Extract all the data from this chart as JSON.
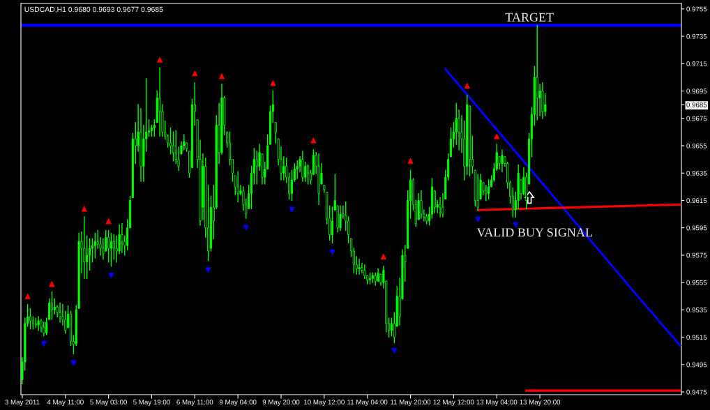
{
  "chart_data": {
    "type": "candlestick",
    "title": "USDCAD,H1 0.9680 0.9693 0.9677 0.9685",
    "color": "#00ff00",
    "categories": [
      "3 May 2011",
      null,
      null,
      null,
      null,
      null,
      null,
      null,
      null,
      null,
      null,
      null,
      null,
      null,
      null,
      null,
      "4 May 11:00",
      null,
      null,
      null,
      null,
      null,
      null,
      null,
      null,
      null,
      null,
      null,
      null,
      null,
      null,
      null,
      "5 May 03:00",
      null,
      null,
      null,
      null,
      null,
      null,
      null,
      null,
      null,
      null,
      null,
      null,
      null,
      null,
      null,
      "5 May 19:00",
      null,
      null,
      null,
      null,
      null,
      null,
      null,
      null,
      null,
      null,
      null,
      null,
      null,
      null,
      null,
      "6 May 11:00",
      null,
      null,
      null,
      null,
      null,
      null,
      null,
      null,
      null,
      null,
      null,
      null,
      null,
      null,
      null,
      "9 May 04:00",
      null,
      null,
      null,
      null,
      null,
      null,
      null,
      null,
      null,
      null,
      null,
      null,
      null,
      null,
      null,
      "9 May 20:00",
      null,
      null,
      null,
      null,
      null,
      null,
      null,
      null,
      null,
      null,
      null,
      null,
      null,
      null,
      null,
      "10 May 12:00",
      null,
      null,
      null,
      null,
      null,
      null,
      null,
      null,
      null,
      null,
      null,
      null,
      null,
      null,
      null,
      "11 May 04:00",
      null,
      null,
      null,
      null,
      null,
      null,
      null,
      null,
      null,
      null,
      null,
      null,
      null,
      null,
      null,
      "11 May 20:00",
      null,
      null,
      null,
      null,
      null,
      null,
      null,
      null,
      null,
      null,
      null,
      null,
      null,
      null,
      null,
      "12 May 12:00",
      null,
      null,
      null,
      null,
      null,
      null,
      null,
      null,
      null,
      null,
      null,
      null,
      null,
      null,
      null,
      "13 May 04:00",
      null,
      null,
      null,
      null,
      null,
      null,
      null,
      null,
      null,
      null,
      null,
      null,
      null,
      null,
      null,
      "13 May 20:00",
      null,
      null,
      null,
      null,
      null,
      null,
      null,
      null,
      null,
      null,
      null,
      null,
      null,
      null,
      null,
      null,
      null,
      null,
      null,
      null,
      null,
      null,
      null,
      null,
      null,
      null,
      null,
      null,
      null,
      null,
      null,
      null,
      null,
      null,
      null,
      null,
      null,
      null,
      null,
      null,
      null,
      null,
      null,
      null,
      null,
      null,
      null,
      null,
      null,
      null,
      null,
      null
    ],
    "ohlc": [
      [
        0.9484,
        0.95,
        0.9481,
        0.9497
      ],
      [
        0.9497,
        0.9529,
        0.9491,
        0.9525
      ],
      [
        0.9525,
        0.9539,
        0.9523,
        0.953
      ],
      [
        0.953,
        0.9536,
        0.9521,
        0.9527
      ],
      [
        0.9527,
        0.953,
        0.9521,
        0.9525
      ],
      [
        0.9525,
        0.9529,
        0.9522,
        0.9524
      ],
      [
        0.9524,
        0.953,
        0.952,
        0.9527
      ],
      [
        0.9527,
        0.9528,
        0.9519,
        0.9522
      ],
      [
        0.9522,
        0.9526,
        0.9516,
        0.9518
      ],
      [
        0.9518,
        0.9529,
        0.9517,
        0.9526
      ],
      [
        0.9528,
        0.9543,
        0.9528,
        0.954
      ],
      [
        0.954,
        0.9548,
        0.9528,
        0.9535
      ],
      [
        0.9535,
        0.9543,
        0.9532,
        0.9537
      ],
      [
        0.9537,
        0.9538,
        0.953,
        0.9533
      ],
      [
        0.9533,
        0.954,
        0.9526,
        0.953
      ],
      [
        0.953,
        0.9539,
        0.9524,
        0.9528
      ],
      [
        0.9528,
        0.9534,
        0.9518,
        0.952
      ],
      [
        0.9522,
        0.9538,
        0.9522,
        0.9532
      ],
      [
        0.9532,
        0.9534,
        0.9509,
        0.9512
      ],
      [
        0.9512,
        0.9516,
        0.9503,
        0.951
      ],
      [
        0.951,
        0.9538,
        0.9509,
        0.9535
      ],
      [
        0.9536,
        0.9591,
        0.9536,
        0.9585
      ],
      [
        0.9585,
        0.9592,
        0.9562,
        0.958
      ],
      [
        0.958,
        0.9603,
        0.9558,
        0.957
      ],
      [
        0.957,
        0.9589,
        0.9558,
        0.9575
      ],
      [
        0.9575,
        0.9587,
        0.9564,
        0.958
      ],
      [
        0.958,
        0.9587,
        0.957,
        0.9582
      ],
      [
        0.9582,
        0.9591,
        0.9573,
        0.9585
      ],
      [
        0.9585,
        0.9593,
        0.958,
        0.9583
      ],
      [
        0.9583,
        0.9588,
        0.9575,
        0.958
      ],
      [
        0.958,
        0.9587,
        0.9572,
        0.9576
      ],
      [
        0.9578,
        0.9593,
        0.9578,
        0.9588
      ],
      [
        0.9588,
        0.9593,
        0.957,
        0.958
      ],
      [
        0.958,
        0.9591,
        0.9567,
        0.9585
      ],
      [
        0.9585,
        0.959,
        0.9572,
        0.958
      ],
      [
        0.958,
        0.9589,
        0.957,
        0.9578
      ],
      [
        0.9578,
        0.9597,
        0.9576,
        0.959
      ],
      [
        0.959,
        0.9598,
        0.9577,
        0.9585
      ],
      [
        0.9585,
        0.9589,
        0.9575,
        0.9582
      ],
      [
        0.9582,
        0.9601,
        0.9579,
        0.9595
      ],
      [
        0.9595,
        0.9618,
        0.9595,
        0.9615
      ],
      [
        0.9617,
        0.9664,
        0.9617,
        0.966
      ],
      [
        0.966,
        0.9672,
        0.9642,
        0.9655
      ],
      [
        0.9655,
        0.9685,
        0.9651,
        0.9665
      ],
      [
        0.9665,
        0.9682,
        0.9629,
        0.964
      ],
      [
        0.964,
        0.967,
        0.9629,
        0.966
      ],
      [
        0.966,
        0.9704,
        0.9651,
        0.9665
      ],
      [
        0.9665,
        0.9674,
        0.9662,
        0.9666
      ],
      [
        0.9666,
        0.967,
        0.9662,
        0.9668
      ],
      [
        0.9668,
        0.9674,
        0.9662,
        0.967
      ],
      [
        0.9672,
        0.9695,
        0.9672,
        0.969
      ],
      [
        0.969,
        0.9712,
        0.9662,
        0.968
      ],
      [
        0.968,
        0.9685,
        0.9662,
        0.9665
      ],
      [
        0.9665,
        0.9673,
        0.966,
        0.9662
      ],
      [
        0.9662,
        0.9663,
        0.9654,
        0.9657
      ],
      [
        0.9657,
        0.9668,
        0.9649,
        0.9655
      ],
      [
        0.9655,
        0.9665,
        0.9644,
        0.965
      ],
      [
        0.965,
        0.9666,
        0.9642,
        0.9645
      ],
      [
        0.9645,
        0.9654,
        0.9637,
        0.964
      ],
      [
        0.9649,
        0.9658,
        0.9649,
        0.9655
      ],
      [
        0.9655,
        0.9663,
        0.9652,
        0.9658
      ],
      [
        0.9657,
        0.9657,
        0.9651,
        0.9653
      ],
      [
        0.9651,
        0.9651,
        0.9632,
        0.9635
      ],
      [
        0.9639,
        0.9689,
        0.9639,
        0.9685
      ],
      [
        0.9685,
        0.9701,
        0.967,
        0.968
      ],
      [
        0.9674,
        0.9674,
        0.9639,
        0.9645
      ],
      [
        0.9645,
        0.9659,
        0.9597,
        0.96
      ],
      [
        0.961,
        0.9649,
        0.9601,
        0.964
      ],
      [
        0.964,
        0.9646,
        0.9588,
        0.9595
      ],
      [
        0.9595,
        0.9626,
        0.9571,
        0.9578
      ],
      [
        0.958,
        0.9618,
        0.9578,
        0.961
      ],
      [
        0.961,
        0.9626,
        0.9587,
        0.96
      ],
      [
        0.961,
        0.9677,
        0.9609,
        0.967
      ],
      [
        0.967,
        0.9686,
        0.9642,
        0.965
      ],
      [
        0.965,
        0.97,
        0.9649,
        0.969
      ],
      [
        0.969,
        0.9691,
        0.9663,
        0.967
      ],
      [
        0.9665,
        0.9665,
        0.9654,
        0.9657
      ],
      [
        0.9657,
        0.9665,
        0.9641,
        0.9645
      ],
      [
        0.9645,
        0.9645,
        0.9629,
        0.9635
      ],
      [
        0.9633,
        0.9633,
        0.9619,
        0.9625
      ],
      [
        0.9625,
        0.9636,
        0.9614,
        0.962
      ],
      [
        0.962,
        0.9626,
        0.9619,
        0.9622
      ],
      [
        0.9622,
        0.9625,
        0.9608,
        0.9612
      ],
      [
        0.9612,
        0.9616,
        0.9602,
        0.9605
      ],
      [
        0.9609,
        0.9626,
        0.9609,
        0.962
      ],
      [
        0.962,
        0.964,
        0.9609,
        0.9635
      ],
      [
        0.9635,
        0.9653,
        0.9627,
        0.9645
      ],
      [
        0.9645,
        0.9651,
        0.9627,
        0.964
      ],
      [
        0.964,
        0.9656,
        0.9637,
        0.965
      ],
      [
        0.9649,
        0.9649,
        0.9627,
        0.9632
      ],
      [
        0.9632,
        0.9643,
        0.9627,
        0.9638
      ],
      [
        0.9638,
        0.9663,
        0.9638,
        0.9655
      ],
      [
        0.9656,
        0.9684,
        0.9656,
        0.968
      ],
      [
        0.968,
        0.9695,
        0.9672,
        0.9685
      ],
      [
        0.9672,
        0.9672,
        0.9657,
        0.9665
      ],
      [
        0.966,
        0.966,
        0.9641,
        0.9645
      ],
      [
        0.9645,
        0.9654,
        0.963,
        0.9635
      ],
      [
        0.9635,
        0.9647,
        0.963,
        0.964
      ],
      [
        0.964,
        0.9646,
        0.9628,
        0.9632
      ],
      [
        0.9632,
        0.9635,
        0.9616,
        0.962
      ],
      [
        0.962,
        0.9637,
        0.9615,
        0.963
      ],
      [
        0.963,
        0.9642,
        0.9629,
        0.9638
      ],
      [
        0.9638,
        0.9644,
        0.9631,
        0.964
      ],
      [
        0.964,
        0.9647,
        0.9636,
        0.9645
      ],
      [
        0.9645,
        0.9651,
        0.9629,
        0.9632
      ],
      [
        0.9632,
        0.9643,
        0.9629,
        0.964
      ],
      [
        0.964,
        0.9641,
        0.9627,
        0.9635
      ],
      [
        0.9635,
        0.9637,
        0.9627,
        0.963
      ],
      [
        0.9634,
        0.9652,
        0.9634,
        0.9648
      ],
      [
        0.9648,
        0.965,
        0.9635,
        0.964
      ],
      [
        0.964,
        0.9649,
        0.9612,
        0.962
      ],
      [
        0.9627,
        0.9642,
        0.9627,
        0.9635
      ],
      [
        0.9626,
        0.9626,
        0.9621,
        0.9623
      ],
      [
        0.9621,
        0.9621,
        0.9598,
        0.9602
      ],
      [
        0.9602,
        0.9611,
        0.9586,
        0.959
      ],
      [
        0.959,
        0.961,
        0.9584,
        0.96
      ],
      [
        0.9608,
        0.9634,
        0.9608,
        0.9615
      ],
      [
        0.9611,
        0.9611,
        0.9592,
        0.9595
      ],
      [
        0.9595,
        0.9611,
        0.9593,
        0.9605
      ],
      [
        0.9605,
        0.9611,
        0.9602,
        0.9604
      ],
      [
        0.9604,
        0.9614,
        0.9593,
        0.96
      ],
      [
        0.96,
        0.9603,
        0.9584,
        0.959
      ],
      [
        0.9587,
        0.9587,
        0.9574,
        0.9578
      ],
      [
        0.9578,
        0.958,
        0.9562,
        0.9568
      ],
      [
        0.9568,
        0.9574,
        0.9561,
        0.9565
      ],
      [
        0.9565,
        0.9572,
        0.9561,
        0.9566
      ],
      [
        0.9566,
        0.9569,
        0.9562,
        0.9564
      ],
      [
        0.9564,
        0.9568,
        0.9558,
        0.956
      ],
      [
        0.956,
        0.956,
        0.9554,
        0.9557
      ],
      [
        0.9557,
        0.9562,
        0.9554,
        0.9558
      ],
      [
        0.9558,
        0.9562,
        0.9555,
        0.956
      ],
      [
        0.956,
        0.9562,
        0.9553,
        0.9556
      ],
      [
        0.9556,
        0.9565,
        0.9556,
        0.9562
      ],
      [
        0.9561,
        0.9561,
        0.9553,
        0.9555
      ],
      [
        0.9555,
        0.9567,
        0.9551,
        0.9564
      ],
      [
        0.9556,
        0.9556,
        0.9519,
        0.9525
      ],
      [
        0.9525,
        0.9529,
        0.9515,
        0.952
      ],
      [
        0.952,
        0.9529,
        0.9516,
        0.9525
      ],
      [
        0.9525,
        0.9533,
        0.9511,
        0.9515
      ],
      [
        0.9523,
        0.9552,
        0.9523,
        0.9545
      ],
      [
        0.9545,
        0.9558,
        0.9524,
        0.953
      ],
      [
        0.9543,
        0.9579,
        0.9543,
        0.9575
      ],
      [
        0.9575,
        0.9582,
        0.9556,
        0.957
      ],
      [
        0.958,
        0.9622,
        0.958,
        0.9615
      ],
      [
        0.9615,
        0.9637,
        0.9602,
        0.963
      ],
      [
        0.963,
        0.9631,
        0.9608,
        0.9612
      ],
      [
        0.9612,
        0.9615,
        0.9596,
        0.9598
      ],
      [
        0.9601,
        0.962,
        0.9601,
        0.9615
      ],
      [
        0.9615,
        0.9622,
        0.9602,
        0.9605
      ],
      [
        0.9605,
        0.9608,
        0.96,
        0.9603
      ],
      [
        0.9603,
        0.9605,
        0.9598,
        0.96
      ],
      [
        0.96,
        0.961,
        0.9597,
        0.9605
      ],
      [
        0.9605,
        0.9631,
        0.9602,
        0.9625
      ],
      [
        0.9622,
        0.9622,
        0.9606,
        0.961
      ],
      [
        0.961,
        0.9615,
        0.9606,
        0.9612
      ],
      [
        0.9612,
        0.9617,
        0.9603,
        0.961
      ],
      [
        0.961,
        0.962,
        0.9603,
        0.9605
      ],
      [
        0.9616,
        0.9637,
        0.9616,
        0.9632
      ],
      [
        0.9632,
        0.9649,
        0.963,
        0.9645
      ],
      [
        0.9647,
        0.9668,
        0.9647,
        0.966
      ],
      [
        0.966,
        0.9672,
        0.9654,
        0.9665
      ],
      [
        0.9665,
        0.9686,
        0.9656,
        0.9675
      ],
      [
        0.9675,
        0.9681,
        0.9652,
        0.9665
      ],
      [
        0.9665,
        0.9677,
        0.965,
        0.966
      ],
      [
        0.966,
        0.9673,
        0.963,
        0.964
      ],
      [
        0.964,
        0.9692,
        0.9634,
        0.9685
      ],
      [
        0.9684,
        0.9684,
        0.9633,
        0.9645
      ],
      [
        0.9645,
        0.9662,
        0.9635,
        0.964
      ],
      [
        0.9637,
        0.9637,
        0.9611,
        0.9615
      ],
      [
        0.9615,
        0.9634,
        0.9608,
        0.961
      ],
      [
        0.9616,
        0.9634,
        0.9616,
        0.963
      ],
      [
        0.9628,
        0.9628,
        0.9619,
        0.9622
      ],
      [
        0.9622,
        0.9626,
        0.9615,
        0.962
      ],
      [
        0.962,
        0.963,
        0.9616,
        0.9625
      ],
      [
        0.9625,
        0.9633,
        0.9625,
        0.963
      ],
      [
        0.963,
        0.9642,
        0.9629,
        0.9638
      ],
      [
        0.9638,
        0.9656,
        0.9637,
        0.965
      ],
      [
        0.9647,
        0.9647,
        0.9638,
        0.9642
      ],
      [
        0.9642,
        0.9652,
        0.9636,
        0.9648
      ],
      [
        0.9647,
        0.9647,
        0.964,
        0.9642
      ],
      [
        0.9642,
        0.9643,
        0.9624,
        0.9628
      ],
      [
        0.9628,
        0.9629,
        0.9613,
        0.9618
      ],
      [
        0.9618,
        0.9624,
        0.9603,
        0.9608
      ],
      [
        0.9608,
        0.9621,
        0.9603,
        0.9615
      ],
      [
        0.9615,
        0.9641,
        0.9609,
        0.9635
      ],
      [
        0.963,
        0.963,
        0.9616,
        0.962
      ],
      [
        0.962,
        0.9639,
        0.9619,
        0.9632
      ],
      [
        0.9632,
        0.9635,
        0.9609,
        0.9615
      ],
      [
        0.9627,
        0.9664,
        0.9627,
        0.966
      ],
      [
        0.966,
        0.9683,
        0.9647,
        0.9678
      ],
      [
        0.9678,
        0.9713,
        0.967,
        0.9705
      ],
      [
        0.9705,
        0.9743,
        0.9674,
        0.969
      ],
      [
        0.969,
        0.97,
        0.9677,
        0.9695
      ],
      [
        0.9695,
        0.9701,
        0.9675,
        0.968
      ],
      [
        0.968,
        0.9693,
        0.9677,
        0.9685
      ],
      null,
      null,
      null,
      null,
      null,
      null,
      null,
      null,
      null,
      null,
      null,
      null,
      null,
      null,
      null,
      null,
      null,
      null,
      null,
      null,
      null,
      null,
      null,
      null,
      null,
      null,
      null,
      null,
      null,
      null,
      null,
      null,
      null,
      null,
      null,
      null,
      null,
      null,
      null,
      null,
      null,
      null,
      null,
      null,
      null,
      null,
      null,
      null,
      null,
      null
    ],
    "series": [
      {
        "type": "scatter",
        "marker": "triangle",
        "color": "#ff0000",
        "values": [
          null,
          null,
          0.9545,
          null,
          null,
          null,
          null,
          null,
          null,
          null,
          null,
          0.9554,
          null,
          null,
          null,
          null,
          null,
          null,
          null,
          null,
          null,
          null,
          null,
          0.9609,
          null,
          null,
          null,
          null,
          null,
          null,
          null,
          null,
          0.96,
          null,
          null,
          null,
          null,
          null,
          null,
          null,
          null,
          null,
          null,
          null,
          null,
          null,
          null,
          null,
          null,
          null,
          null,
          0.9718,
          null,
          null,
          null,
          null,
          null,
          null,
          null,
          null,
          null,
          null,
          null,
          null,
          0.9708,
          null,
          null,
          null,
          null,
          null,
          null,
          null,
          null,
          null,
          0.9706,
          null,
          null,
          null,
          null,
          null,
          null,
          null,
          null,
          null,
          null,
          null,
          null,
          null,
          null,
          null,
          null,
          null,
          null,
          0.9701,
          null,
          null,
          null,
          null,
          null,
          null,
          null,
          null,
          null,
          null,
          null,
          null,
          null,
          null,
          0.9659,
          null,
          null,
          null,
          null,
          null,
          null,
          null,
          null,
          null,
          null,
          null,
          null,
          null,
          null,
          null,
          null,
          null,
          null,
          null,
          null,
          null,
          null,
          null,
          null,
          null,
          0.9574,
          null,
          null,
          null,
          null,
          null,
          null,
          null,
          null,
          null,
          0.9644,
          null,
          null,
          null,
          null,
          null,
          null,
          null,
          null,
          null,
          null,
          null,
          null,
          null,
          null,
          null,
          null,
          null,
          null,
          null,
          null,
          0.9699,
          null,
          null,
          null,
          null,
          null,
          null,
          null,
          null,
          null,
          null,
          0.9662,
          null,
          null,
          null,
          null,
          null,
          null,
          null,
          null,
          null,
          null,
          null,
          null,
          null,
          null,
          null,
          null,
          null,
          null,
          null,
          null,
          null,
          null,
          null,
          null,
          null,
          null,
          null,
          null,
          null,
          null,
          null,
          null,
          null,
          null,
          null,
          null,
          null,
          null,
          null,
          null,
          null,
          null,
          null,
          null,
          null,
          null,
          null,
          null,
          null,
          null,
          null,
          null,
          null,
          null,
          null,
          null,
          null,
          null,
          null,
          null,
          null,
          null,
          null,
          null,
          null,
          null,
          null,
          null
        ]
      },
      {
        "type": "scatter",
        "marker": "triangle",
        "color": "#0000ff",
        "values": [
          null,
          null,
          null,
          null,
          null,
          null,
          null,
          null,
          0.951,
          null,
          null,
          null,
          null,
          null,
          null,
          null,
          null,
          null,
          null,
          0.9496,
          null,
          null,
          null,
          null,
          null,
          null,
          null,
          null,
          null,
          null,
          null,
          null,
          null,
          0.956,
          null,
          null,
          null,
          null,
          null,
          null,
          null,
          null,
          null,
          null,
          null,
          null,
          null,
          null,
          null,
          null,
          null,
          null,
          null,
          null,
          null,
          null,
          null,
          null,
          null,
          null,
          null,
          null,
          null,
          null,
          null,
          null,
          null,
          null,
          null,
          0.9564,
          null,
          null,
          null,
          null,
          null,
          null,
          null,
          null,
          null,
          null,
          null,
          null,
          null,
          0.9595,
          null,
          null,
          null,
          null,
          null,
          null,
          null,
          null,
          null,
          null,
          null,
          null,
          null,
          null,
          null,
          null,
          0.9608,
          null,
          null,
          null,
          null,
          null,
          null,
          null,
          null,
          null,
          null,
          null,
          null,
          null,
          null,
          0.9577,
          null,
          null,
          null,
          null,
          null,
          null,
          null,
          null,
          null,
          null,
          null,
          null,
          null,
          null,
          null,
          null,
          null,
          null,
          null,
          null,
          null,
          null,
          0.9505,
          null,
          null,
          null,
          null,
          null,
          null,
          null,
          null,
          null,
          null,
          null,
          null,
          null,
          null,
          null,
          null,
          null,
          null,
          null,
          null,
          null,
          null,
          null,
          null,
          null,
          null,
          null,
          null,
          null,
          null,
          0.9601,
          null,
          null,
          null,
          null,
          null,
          null,
          null,
          null,
          null,
          null,
          null,
          null,
          null,
          0.9597,
          null,
          null,
          null,
          null,
          null,
          null,
          null,
          null,
          null,
          null,
          null,
          null,
          null,
          null,
          null,
          null,
          null,
          null,
          null,
          null,
          null,
          null,
          null,
          null,
          null,
          null,
          null,
          null,
          null,
          null,
          null,
          null,
          null,
          null,
          null,
          null,
          null,
          null,
          null,
          null,
          null,
          null,
          null,
          null,
          null,
          null,
          null,
          null,
          null,
          null,
          null,
          null,
          null,
          null,
          null,
          null,
          null,
          null,
          null,
          null,
          null
        ]
      },
      {
        "type": "line",
        "color": "#0000ff",
        "values": [
          null,
          null,
          null,
          null,
          null,
          null,
          null,
          null,
          null,
          null,
          null,
          null,
          null,
          null,
          null,
          null,
          null,
          null,
          null,
          null,
          null,
          null,
          null,
          null,
          null,
          null,
          null,
          null,
          null,
          null,
          null,
          null,
          null,
          null,
          null,
          null,
          null,
          null,
          null,
          null,
          null,
          null,
          null,
          null,
          null,
          null,
          null,
          null,
          null,
          null,
          null,
          null,
          null,
          null,
          null,
          null,
          null,
          null,
          null,
          null,
          null,
          null,
          null,
          null,
          null,
          null,
          null,
          null,
          null,
          null,
          null,
          null,
          null,
          null,
          null,
          null,
          null,
          null,
          null,
          null,
          null,
          null,
          null,
          null,
          null,
          null,
          null,
          null,
          null,
          null,
          null,
          null,
          null,
          null,
          null,
          null,
          null,
          null,
          null,
          null,
          null,
          null,
          null,
          null,
          null,
          null,
          null,
          null,
          null,
          null,
          null,
          null,
          null,
          null,
          null,
          null,
          null,
          null,
          null,
          null,
          null,
          null,
          null,
          null,
          null,
          null,
          null,
          null,
          null,
          null,
          null,
          null,
          null,
          null,
          null,
          null,
          null,
          null,
          null,
          null,
          null,
          null,
          null,
          null,
          null,
          null,
          null,
          null,
          null,
          null,
          null,
          null,
          null,
          null,
          null,
          null,
          null,
          0.9711,
          null,
          null,
          null,
          null,
          null,
          null,
          null,
          null,
          null,
          null,
          null,
          null,
          null,
          null,
          null,
          null,
          null,
          null,
          null,
          null,
          null,
          null,
          null,
          null,
          null,
          null,
          null,
          null,
          null,
          null,
          null,
          null,
          null,
          null,
          null,
          null,
          0.9625,
          null,
          null,
          null,
          null,
          null,
          null,
          null,
          null,
          null,
          null,
          null,
          null,
          null,
          null,
          null,
          null,
          null,
          null,
          null,
          null,
          null,
          null,
          null,
          null,
          null,
          null,
          null,
          null,
          null,
          null,
          null,
          null,
          null,
          null,
          null,
          0.9541,
          null,
          null,
          null,
          null,
          null,
          null,
          null,
          null,
          null,
          null,
          null,
          null,
          null,
          0.9509
        ]
      },
      {
        "type": "line",
        "color": "#ff0000",
        "values": [
          null,
          null,
          null,
          null,
          null,
          null,
          null,
          null,
          null,
          null,
          null,
          null,
          null,
          null,
          null,
          null,
          null,
          null,
          null,
          null,
          null,
          null,
          null,
          null,
          null,
          null,
          null,
          null,
          null,
          null,
          null,
          null,
          null,
          null,
          null,
          null,
          null,
          null,
          null,
          null,
          null,
          null,
          null,
          null,
          null,
          null,
          null,
          null,
          null,
          null,
          null,
          null,
          null,
          null,
          null,
          null,
          null,
          null,
          null,
          null,
          null,
          null,
          null,
          null,
          null,
          null,
          null,
          null,
          null,
          null,
          null,
          null,
          null,
          null,
          null,
          null,
          null,
          null,
          null,
          null,
          null,
          null,
          null,
          null,
          null,
          null,
          null,
          null,
          null,
          null,
          null,
          null,
          null,
          null,
          null,
          null,
          null,
          null,
          null,
          null,
          null,
          null,
          null,
          null,
          null,
          null,
          null,
          null,
          null,
          null,
          null,
          null,
          null,
          null,
          null,
          null,
          null,
          null,
          null,
          null,
          null,
          null,
          null,
          null,
          null,
          null,
          null,
          null,
          null,
          null,
          null,
          null,
          null,
          null,
          null,
          null,
          null,
          null,
          null,
          null,
          null,
          null,
          null,
          null,
          null,
          null,
          null,
          null,
          null,
          null,
          null,
          null,
          null,
          null,
          null,
          null,
          null,
          null,
          null,
          null,
          null,
          null,
          null,
          null,
          null,
          null,
          null,
          null,
          null,
          0.9608,
          null,
          null,
          null,
          null,
          null,
          null,
          null,
          null,
          null,
          null,
          null,
          null,
          null,
          null,
          null,
          null,
          null,
          null,
          null,
          null,
          null,
          null,
          null,
          null,
          null,
          null,
          null,
          null,
          null,
          null,
          null,
          null,
          null,
          null,
          null,
          null,
          null,
          null,
          null,
          null,
          null,
          null,
          null,
          null,
          null,
          null,
          null,
          null,
          null,
          null,
          null,
          null,
          null,
          null,
          null,
          null,
          null,
          null,
          null,
          null,
          null,
          null,
          null,
          null,
          null,
          null,
          null,
          null,
          null,
          null,
          null,
          null,
          null,
          null,
          0.9612
        ]
      },
      {
        "type": "line",
        "color": "#ff0000",
        "values": [
          null,
          null,
          null,
          null,
          null,
          null,
          null,
          null,
          null,
          null,
          null,
          null,
          null,
          null,
          null,
          null,
          null,
          null,
          null,
          null,
          null,
          null,
          null,
          null,
          null,
          null,
          null,
          null,
          null,
          null,
          null,
          null,
          null,
          null,
          null,
          null,
          null,
          null,
          null,
          null,
          null,
          null,
          null,
          null,
          null,
          null,
          null,
          null,
          null,
          null,
          null,
          null,
          null,
          null,
          null,
          null,
          null,
          null,
          null,
          null,
          null,
          null,
          null,
          null,
          null,
          null,
          null,
          null,
          null,
          null,
          null,
          null,
          null,
          null,
          null,
          null,
          null,
          null,
          null,
          null,
          null,
          null,
          null,
          null,
          null,
          null,
          null,
          null,
          null,
          null,
          null,
          null,
          null,
          null,
          null,
          null,
          null,
          null,
          null,
          null,
          null,
          null,
          null,
          null,
          null,
          null,
          null,
          null,
          null,
          null,
          null,
          null,
          null,
          null,
          null,
          null,
          null,
          null,
          null,
          null,
          null,
          null,
          null,
          null,
          null,
          null,
          null,
          null,
          null,
          null,
          null,
          null,
          null,
          null,
          null,
          null,
          null,
          null,
          null,
          null,
          null,
          null,
          null,
          null,
          null,
          null,
          null,
          null,
          null,
          null,
          null,
          null,
          null,
          null,
          null,
          null,
          null,
          null,
          null,
          null,
          null,
          null,
          null,
          null,
          null,
          null,
          null,
          null,
          null,
          null,
          null,
          null,
          null,
          null,
          null,
          null,
          null,
          null,
          null,
          null,
          null,
          null,
          null,
          null,
          null,
          null,
          null,
          0.9476,
          null,
          null,
          null,
          null,
          null,
          null,
          null,
          null,
          null,
          null,
          null,
          null,
          null,
          null,
          null,
          null,
          null,
          null,
          null,
          null,
          null,
          null,
          null,
          null,
          null,
          null,
          null,
          null,
          null,
          null,
          null,
          null,
          null,
          null,
          null,
          null,
          null,
          null,
          null,
          null,
          null,
          null,
          null,
          null,
          null,
          null,
          null,
          null,
          null,
          null,
          null,
          null,
          null,
          null,
          null,
          null,
          0.9476
        ]
      }
    ],
    "ref_lines": [
      {
        "axis": "y",
        "value": 0.9743,
        "color": "#0000ff"
      }
    ],
    "annotations": [
      "TARGET",
      "VALID BUY SIGNAL"
    ],
    "ylim": [
      0.9473,
      0.9759
    ],
    "yticks": [
      0.9475,
      0.9495,
      0.9515,
      0.9535,
      0.9555,
      0.9575,
      0.9595,
      0.9615,
      0.9635,
      0.9655,
      0.9675,
      0.9685,
      0.9695,
      0.9715,
      0.9735,
      0.9755
    ]
  }
}
